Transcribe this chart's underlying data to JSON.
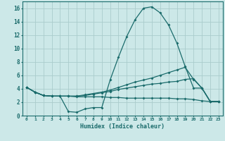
{
  "bg_color": "#cce8e8",
  "grid_color": "#aacccc",
  "line_color": "#1a6b6b",
  "xlabel": "Humidex (Indice chaleur)",
  "xlim": [
    -0.5,
    23.5
  ],
  "ylim": [
    0,
    17
  ],
  "xticks": [
    0,
    1,
    2,
    3,
    4,
    5,
    6,
    7,
    8,
    9,
    10,
    11,
    12,
    13,
    14,
    15,
    16,
    17,
    18,
    19,
    20,
    21,
    22,
    23
  ],
  "yticks": [
    0,
    2,
    4,
    6,
    8,
    10,
    12,
    14,
    16
  ],
  "curve1_x": [
    0,
    1,
    2,
    3,
    4,
    5,
    6,
    7,
    8,
    9,
    10,
    11,
    12,
    13,
    14,
    15,
    16,
    17,
    18,
    19,
    20,
    21,
    22,
    23
  ],
  "curve1_y": [
    4.2,
    3.5,
    3.0,
    2.9,
    2.9,
    0.6,
    0.5,
    1.0,
    1.2,
    1.2,
    5.3,
    8.7,
    11.8,
    14.3,
    16.0,
    16.2,
    15.3,
    13.5,
    10.8,
    7.3,
    4.1,
    4.1,
    2.1,
    2.1
  ],
  "curve2_x": [
    0,
    1,
    2,
    3,
    4,
    5,
    6,
    7,
    8,
    9,
    10,
    11,
    12,
    13,
    14,
    15,
    16,
    17,
    18,
    19,
    20,
    21,
    22,
    23
  ],
  "curve2_y": [
    4.2,
    3.5,
    3.0,
    2.9,
    2.9,
    2.9,
    2.9,
    3.1,
    3.3,
    3.5,
    3.8,
    4.2,
    4.6,
    5.0,
    5.3,
    5.6,
    6.0,
    6.4,
    6.8,
    7.2,
    5.4,
    4.1,
    2.1,
    2.1
  ],
  "curve3_x": [
    0,
    1,
    2,
    3,
    4,
    5,
    6,
    7,
    8,
    9,
    10,
    11,
    12,
    13,
    14,
    15,
    16,
    17,
    18,
    19,
    20,
    21,
    22,
    23
  ],
  "curve3_y": [
    4.2,
    3.5,
    3.0,
    2.9,
    2.9,
    2.9,
    2.9,
    3.0,
    3.2,
    3.4,
    3.6,
    3.9,
    4.1,
    4.3,
    4.5,
    4.7,
    4.8,
    5.0,
    5.1,
    5.4,
    5.5,
    4.1,
    2.1,
    2.1
  ],
  "curve4_x": [
    0,
    1,
    2,
    3,
    4,
    5,
    6,
    7,
    8,
    9,
    10,
    11,
    12,
    13,
    14,
    15,
    16,
    17,
    18,
    19,
    20,
    21,
    22,
    23
  ],
  "curve4_y": [
    4.2,
    3.5,
    3.0,
    2.9,
    2.9,
    2.9,
    2.8,
    2.8,
    2.8,
    2.8,
    2.7,
    2.7,
    2.6,
    2.6,
    2.6,
    2.6,
    2.6,
    2.6,
    2.5,
    2.5,
    2.4,
    2.2,
    2.1,
    2.1
  ]
}
